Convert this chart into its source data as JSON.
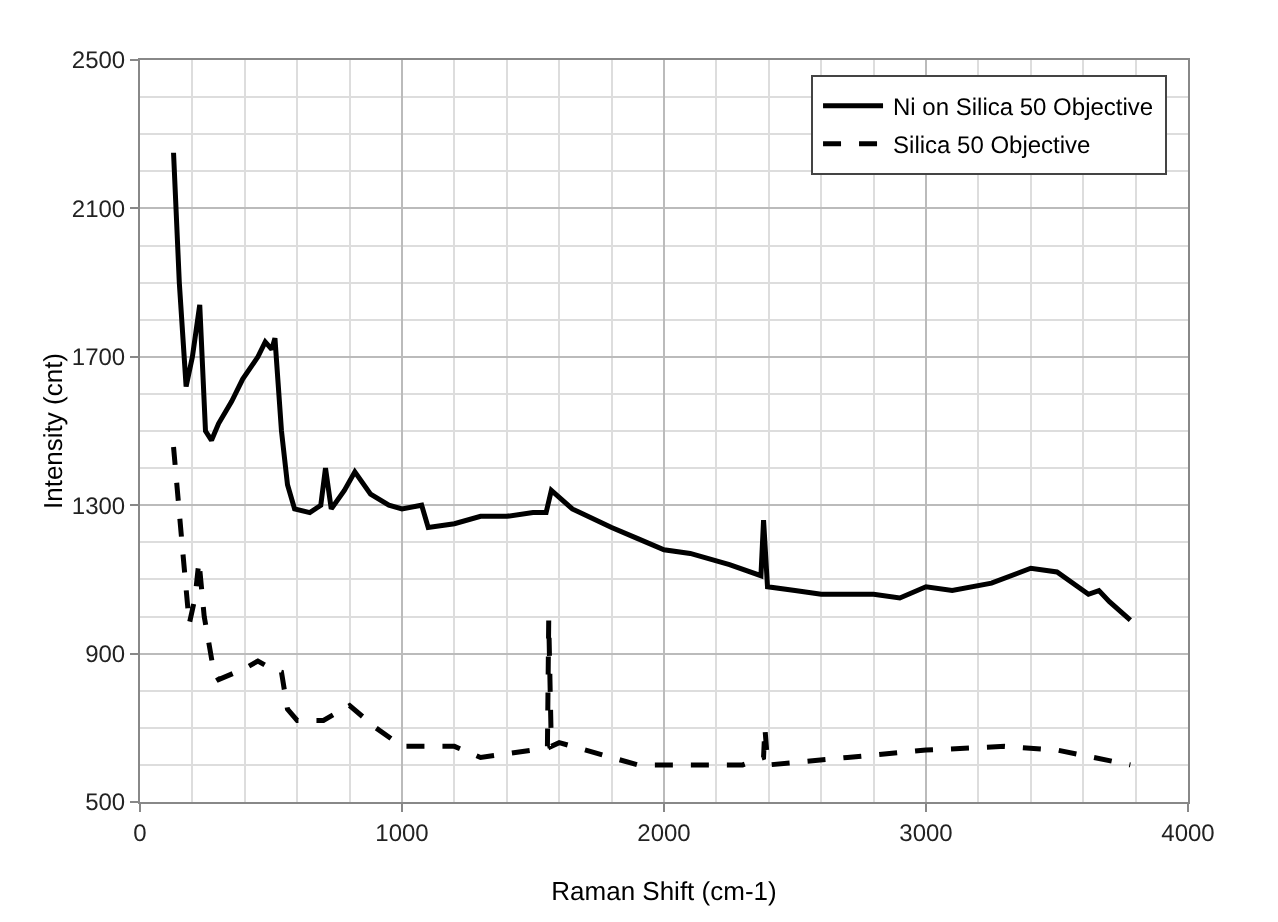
{
  "chart_data": {
    "type": "line",
    "xlabel": "Raman Shift (cm-1)",
    "ylabel": "Intensity (cnt)",
    "xlim": [
      0,
      4000
    ],
    "xticks": [
      0,
      1000,
      2000,
      3000,
      4000
    ],
    "ylim": [
      500,
      2500
    ],
    "yticks": [
      500,
      900,
      1300,
      1700,
      2100,
      2500
    ],
    "grid": true,
    "legend": "top right",
    "marker": "none",
    "series": [
      {
        "name": "Ni on Silica 50 Objective",
        "color": "#000000",
        "line_style": "solid",
        "x": [
          128,
          150,
          176,
          200,
          228,
          250,
          273,
          300,
          350,
          392,
          450,
          478,
          503,
          515,
          540,
          563,
          590,
          648,
          690,
          708,
          730,
          780,
          820,
          880,
          950,
          1000,
          1075,
          1100,
          1200,
          1300,
          1400,
          1500,
          1550,
          1570,
          1650,
          1800,
          1900,
          2000,
          2100,
          2250,
          2370,
          2380,
          2395,
          2500,
          2600,
          2800,
          2900,
          3000,
          3100,
          3250,
          3400,
          3500,
          3620,
          3660,
          3700,
          3780
        ],
        "values": [
          2250,
          1900,
          1620,
          1700,
          1840,
          1500,
          1475,
          1520,
          1580,
          1640,
          1700,
          1740,
          1720,
          1750,
          1500,
          1355,
          1290,
          1280,
          1300,
          1400,
          1290,
          1340,
          1390,
          1330,
          1300,
          1290,
          1300,
          1240,
          1250,
          1270,
          1270,
          1280,
          1280,
          1340,
          1290,
          1240,
          1210,
          1180,
          1170,
          1140,
          1110,
          1260,
          1080,
          1070,
          1060,
          1060,
          1050,
          1080,
          1070,
          1090,
          1130,
          1120,
          1060,
          1070,
          1040,
          990
        ]
      },
      {
        "name": "Silica 50 Objective",
        "color": "#000000",
        "line_style": "dashed",
        "x": [
          128,
          160,
          188,
          210,
          225,
          245,
          260,
          282,
          300,
          400,
          450,
          500,
          540,
          563,
          600,
          700,
          800,
          850,
          900,
          1000,
          1200,
          1300,
          1500,
          1555,
          1560,
          1570,
          1600,
          1800,
          1900,
          2100,
          2300,
          2380,
          2385,
          2395,
          2400,
          2700,
          3000,
          3300,
          3500,
          3780
        ],
        "values": [
          1457,
          1200,
          980,
          1050,
          1150,
          1000,
          940,
          850,
          830,
          860,
          880,
          860,
          850,
          750,
          720,
          720,
          760,
          730,
          700,
          650,
          650,
          620,
          640,
          650,
          990,
          650,
          660,
          620,
          600,
          600,
          600,
          620,
          700,
          610,
          600,
          620,
          640,
          650,
          640,
          600
        ]
      }
    ]
  }
}
